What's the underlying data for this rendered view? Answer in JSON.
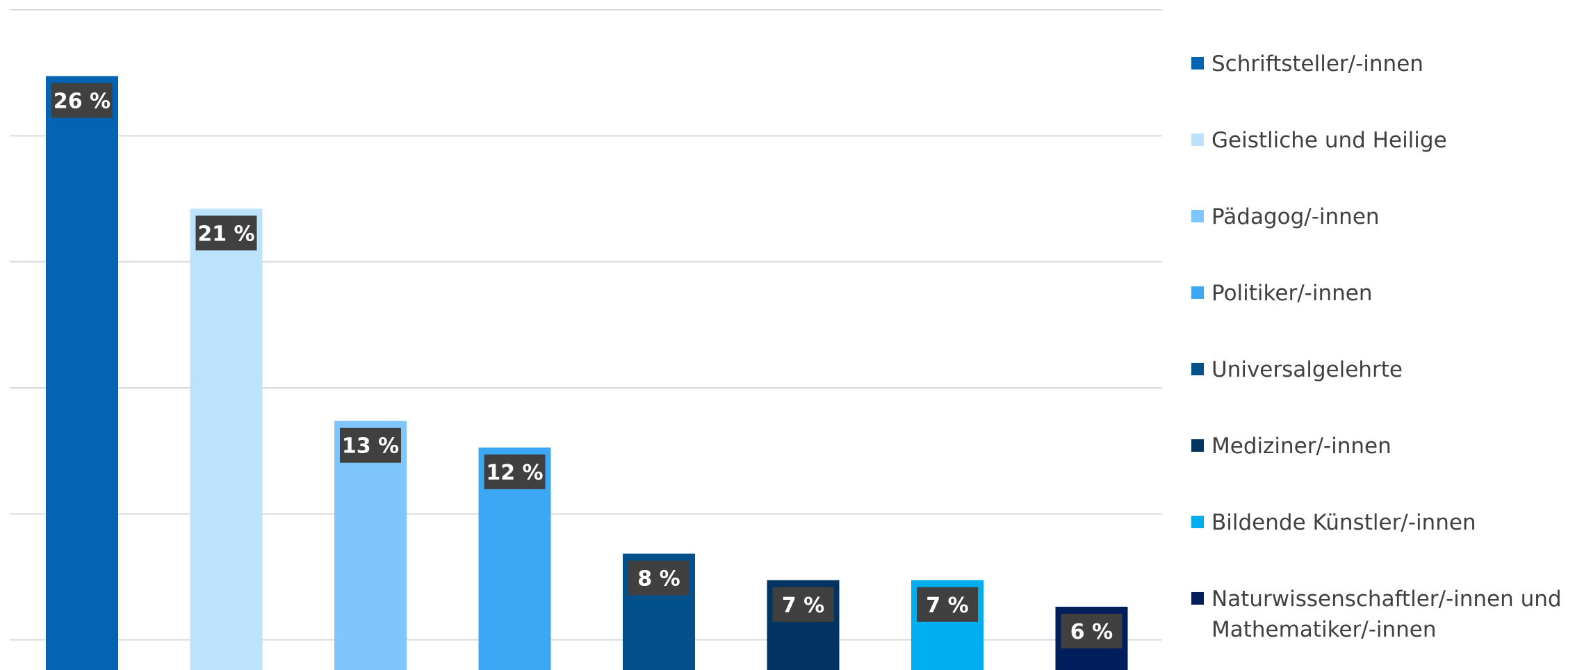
{
  "chart_data": {
    "type": "bar",
    "categories": [
      "Schriftsteller/-innen",
      "Geistliche und Heilige",
      "Pädagog/-innen",
      "Politiker/-innen",
      "Universalgelehrte",
      "Mediziner/-innen",
      "Bildende Künstler/-innen",
      "Naturwissenschaftler/-innen und Mathematiker/-innen"
    ],
    "values": [
      26,
      21,
      13,
      12,
      8,
      7,
      7,
      6
    ],
    "data_labels": [
      "26 %",
      "21 %",
      "13 %",
      "12 %",
      "8 %",
      "7 %",
      "7 %",
      "6 %"
    ],
    "colors": [
      "#0563b3",
      "#bde2fb",
      "#7ec6fb",
      "#3ca8f5",
      "#02508c",
      "#023461",
      "#00aeef",
      "#021e5c"
    ],
    "legend": [
      {
        "label": "Schriftsteller/-innen",
        "color": "#0563b3"
      },
      {
        "label": "Geistliche und Heilige",
        "color": "#bde2fb"
      },
      {
        "label": "Pädagog/-innen",
        "color": "#7ec6fb"
      },
      {
        "label": "Politiker/-innen",
        "color": "#3ca8f5"
      },
      {
        "label": "Universalgelehrte",
        "color": "#02508c"
      },
      {
        "label": "Mediziner/-innen",
        "color": "#023461"
      },
      {
        "label": "Bildende Künstler/-innen",
        "color": "#00aeef"
      },
      {
        "label": "Naturwissenschaftler/-innen und Mathematiker/-innen",
        "color": "#021e5c"
      }
    ],
    "legend_position": "right",
    "grid": true,
    "ylim": [
      0,
      28.5
    ],
    "grid_step": 4.75
  }
}
